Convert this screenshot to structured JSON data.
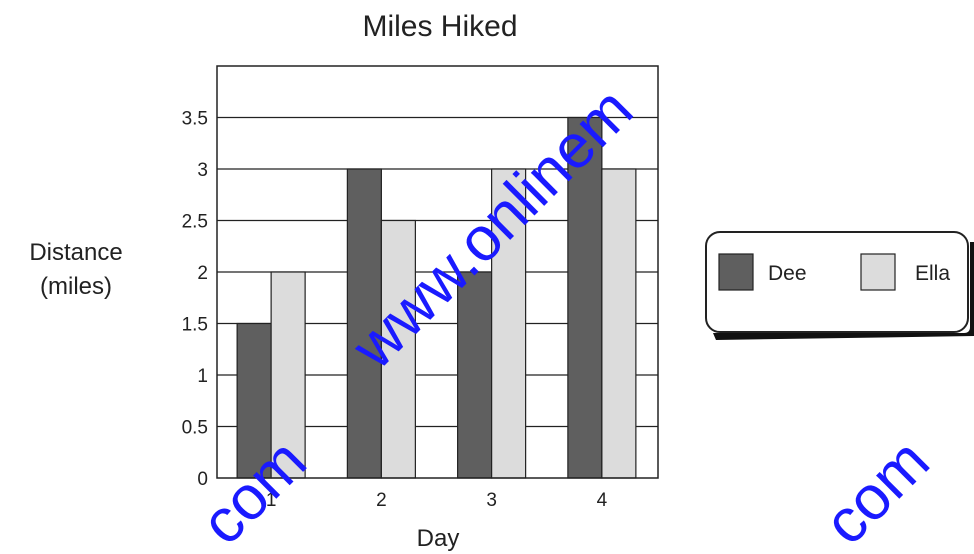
{
  "chart_data": {
    "type": "bar",
    "title": "Miles Hiked",
    "xlabel": "Day",
    "ylabel_lines": [
      "Distance",
      "(miles)"
    ],
    "categories": [
      "1",
      "2",
      "3",
      "4"
    ],
    "series": [
      {
        "name": "Dee",
        "values": [
          1.5,
          3,
          2,
          3.5
        ],
        "color": "#5f5f5f"
      },
      {
        "name": "Ella",
        "values": [
          2,
          2.5,
          3,
          3
        ],
        "color": "#dcdcdc"
      }
    ],
    "ylim": [
      0,
      4
    ],
    "yticks": [
      "0",
      "0.5",
      "1",
      "1.5",
      "2",
      "2.5",
      "3",
      "3.5"
    ],
    "grid": true,
    "legend_position": "right"
  },
  "watermark": {
    "text": "www.onlinem",
    "corner_texts": [
      "com",
      "com"
    ],
    "color": "#1a1aff"
  }
}
